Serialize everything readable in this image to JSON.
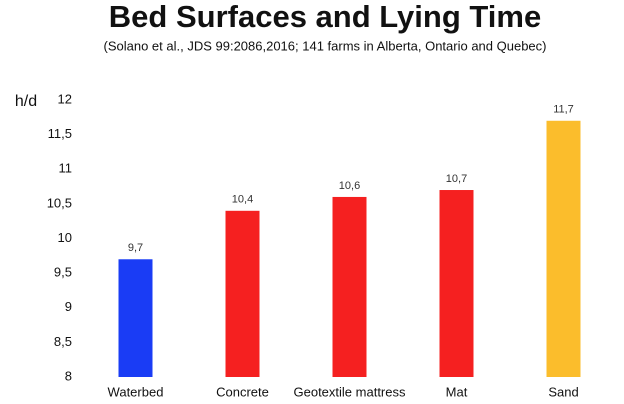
{
  "chart_data": {
    "type": "bar",
    "title": "Bed Surfaces and Lying Time",
    "subtitle": "(Solano et al., JDS 99:2086,2016; 141 farms in Alberta, Ontario and Quebec)",
    "y_label": "h/d",
    "categories": [
      "Waterbed",
      "Concrete",
      "Geotextile mattress",
      "Mat",
      "Sand"
    ],
    "values": [
      9.7,
      10.4,
      10.6,
      10.7,
      11.7
    ],
    "value_labels": [
      "9,7",
      "10,4",
      "10,6",
      "10,7",
      "11,7"
    ],
    "colors": [
      "#1a3cf5",
      "#f52020",
      "#f52020",
      "#f52020",
      "#fbbd2c"
    ],
    "ylim": [
      8,
      12
    ],
    "yticks": [
      8,
      {
        "value": 8.5,
        "label": "8,5"
      },
      9,
      {
        "value": 9.5,
        "label": "9,5"
      },
      10,
      {
        "value": 10.5,
        "label": "10,5"
      },
      11,
      {
        "value": 11.5,
        "label": "11,5"
      },
      12
    ],
    "grid": false
  }
}
